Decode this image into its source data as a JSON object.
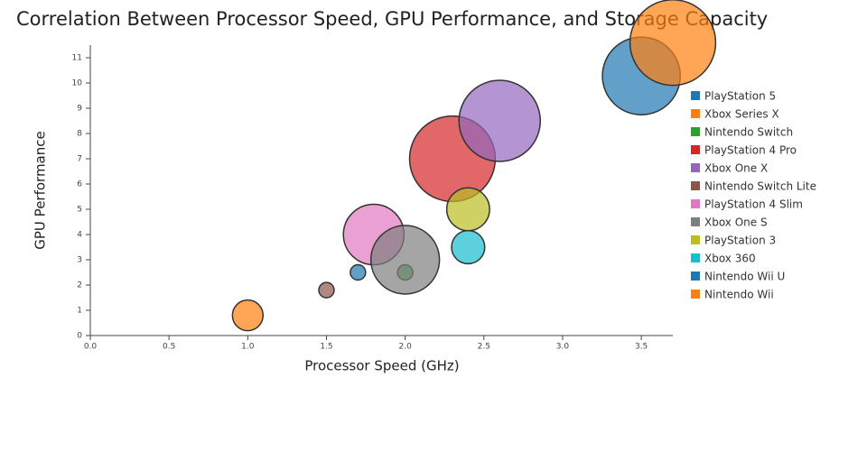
{
  "chart_data": {
    "type": "scatter",
    "title": "Correlation Between Processor Speed, GPU Performance, and Storage Capacity",
    "xlabel": "Processor Speed (GHz)",
    "ylabel": "GPU Performance",
    "xlim": [
      0,
      3.7
    ],
    "ylim": [
      0,
      11.5
    ],
    "xticks": [
      {
        "value": 0,
        "label": "0.0"
      },
      0.5,
      {
        "value": 1,
        "label": "1.0"
      },
      1.5,
      {
        "value": 2,
        "label": "2.0"
      },
      2.5,
      {
        "value": 3,
        "label": "3.0"
      },
      3.5
    ],
    "yticks": [
      0,
      1,
      2,
      3,
      4,
      5,
      6,
      7,
      8,
      9,
      10,
      11
    ],
    "legend": "right",
    "series": [
      {
        "name": "PlayStation 5",
        "color": "#1f77b4",
        "x": [
          3.5
        ],
        "y": [
          10.28
        ],
        "size": [
          825
        ]
      },
      {
        "name": "Xbox Series X",
        "color": "#ff7f0e",
        "x": [
          3.7
        ],
        "y": [
          11.6
        ],
        "size": [
          1000
        ]
      },
      {
        "name": "Nintendo Switch",
        "color": "#2ca02c",
        "x": [
          2.0
        ],
        "y": [
          2.5
        ],
        "size": [
          32
        ]
      },
      {
        "name": "PlayStation 4 Pro",
        "color": "#d62728",
        "x": [
          2.3
        ],
        "y": [
          7.0
        ],
        "size": [
          1000
        ]
      },
      {
        "name": "Xbox One X",
        "color": "#9467bd",
        "x": [
          2.6
        ],
        "y": [
          8.5
        ],
        "size": [
          900
        ]
      },
      {
        "name": "Nintendo Switch Lite",
        "color": "#8c564b",
        "x": [
          1.5
        ],
        "y": [
          1.8
        ],
        "size": [
          32
        ]
      },
      {
        "name": "PlayStation 4 Slim",
        "color": "#e377c2",
        "x": [
          1.8
        ],
        "y": [
          4.0
        ],
        "size": [
          500
        ]
      },
      {
        "name": "Xbox One S",
        "color": "#7f7f7f",
        "x": [
          2.0
        ],
        "y": [
          3.0
        ],
        "size": [
          640
        ]
      },
      {
        "name": "PlayStation 3",
        "color": "#bcbd22",
        "x": [
          2.4
        ],
        "y": [
          5.0
        ],
        "size": [
          250
        ]
      },
      {
        "name": "Xbox 360",
        "color": "#17becf",
        "x": [
          2.4
        ],
        "y": [
          3.5
        ],
        "size": [
          150
        ]
      },
      {
        "name": "Nintendo Wii U",
        "color": "#1f77b4",
        "x": [
          1.7
        ],
        "y": [
          2.5
        ],
        "size": [
          32
        ]
      },
      {
        "name": "Nintendo Wii",
        "color": "#ff7f0e",
        "x": [
          1.0
        ],
        "y": [
          0.8
        ],
        "size": [
          128
        ]
      }
    ]
  }
}
